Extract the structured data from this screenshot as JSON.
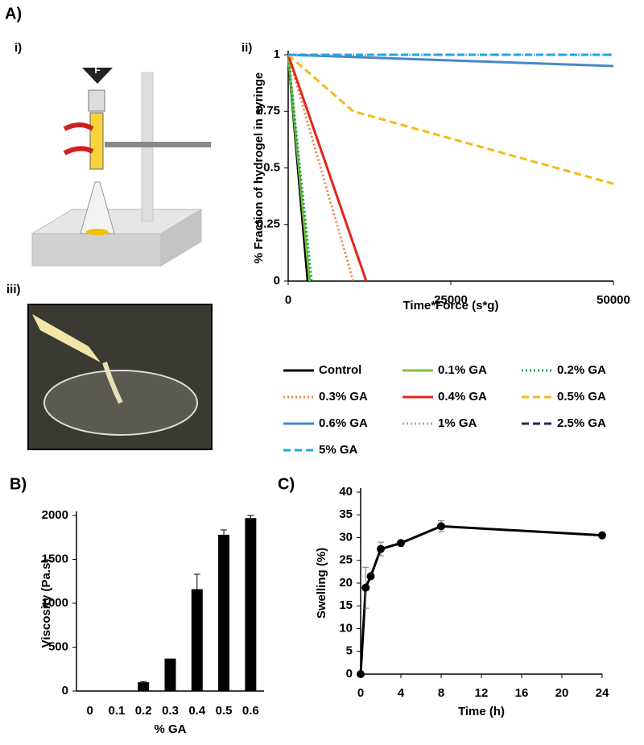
{
  "panels": {
    "a": "A)",
    "i": "i)",
    "ii": "ii)",
    "iii": "iii)",
    "b": "B)",
    "c": "C)"
  },
  "illustration": {
    "force_label": "F"
  },
  "chart_data": [
    {
      "type": "line",
      "ylabel": "% Fraction of hydrogel in syringe",
      "xlabel": "Time*Force (s*g)",
      "xlim": [
        0,
        50000
      ],
      "ylim": [
        0,
        1
      ],
      "xticks": [
        0,
        25000,
        50000
      ],
      "yticks": [
        0,
        0.25,
        0.5,
        0.75,
        1
      ],
      "series": [
        {
          "name": "Control",
          "color": "#000000",
          "style": "solid",
          "x": [
            0,
            3000
          ],
          "values": [
            1,
            0
          ]
        },
        {
          "name": "0.1% GA",
          "color": "#7cc142",
          "style": "solid",
          "x": [
            0,
            3300
          ],
          "values": [
            1,
            0
          ]
        },
        {
          "name": "0.2% GA",
          "color": "#00a651",
          "style": "dotted",
          "x": [
            0,
            3600
          ],
          "values": [
            1,
            0
          ]
        },
        {
          "name": "0.3% GA",
          "color": "#e8874a",
          "style": "dotted",
          "x": [
            0,
            10000
          ],
          "values": [
            1,
            0
          ]
        },
        {
          "name": "0.4% GA",
          "color": "#e3241b",
          "style": "solid",
          "x": [
            0,
            12000
          ],
          "values": [
            1,
            0
          ]
        },
        {
          "name": "0.5% GA",
          "color": "#f6b91a",
          "style": "dashed",
          "x": [
            0,
            10000,
            50000
          ],
          "values": [
            1,
            0.75,
            0.43
          ]
        },
        {
          "name": "0.6% GA",
          "color": "#4a86c8",
          "style": "solid",
          "x": [
            0,
            50000
          ],
          "values": [
            1,
            0.95
          ]
        },
        {
          "name": "1% GA",
          "color": "#8fa8d8",
          "style": "dotted",
          "x": [
            0,
            50000
          ],
          "values": [
            1,
            1
          ]
        },
        {
          "name": "2.5% GA",
          "color": "#1f2a44",
          "style": "dashed",
          "x": [
            0,
            50000
          ],
          "values": [
            1,
            1
          ]
        },
        {
          "name": "5% GA",
          "color": "#19a9e0",
          "style": "dashed",
          "x": [
            0,
            50000
          ],
          "values": [
            1,
            1
          ]
        }
      ]
    },
    {
      "type": "bar",
      "ylabel": "Viscosity (Pa.s)",
      "xlabel": "% GA",
      "categories": [
        "0",
        "0.1",
        "0.2",
        "0.3",
        "0.4",
        "0.5",
        "0.6"
      ],
      "values": [
        3,
        3,
        100,
        370,
        1160,
        1780,
        1970
      ],
      "errors": [
        0,
        0,
        8,
        0,
        170,
        55,
        30
      ],
      "color": "#000000",
      "ylim": [
        0,
        2000
      ],
      "yticks": [
        0,
        500,
        1000,
        1500,
        2000
      ]
    },
    {
      "type": "line",
      "ylabel": "Swelling (%)",
      "xlabel": "Time (h)",
      "xlim": [
        0,
        24
      ],
      "ylim": [
        0,
        40
      ],
      "xticks": [
        0,
        4,
        8,
        12,
        16,
        20,
        24
      ],
      "yticks": [
        0,
        5,
        10,
        15,
        20,
        25,
        30,
        35,
        40
      ],
      "series": [
        {
          "color": "#000000",
          "style": "solid",
          "markers": true,
          "x": [
            0,
            0.5,
            1,
            2,
            4,
            8,
            24
          ],
          "values": [
            0,
            19,
            21.5,
            27.5,
            28.8,
            32.5,
            30.5
          ],
          "errors": [
            0,
            4.5,
            0.5,
            1.5,
            0.5,
            1.2,
            0.3
          ]
        }
      ]
    }
  ]
}
